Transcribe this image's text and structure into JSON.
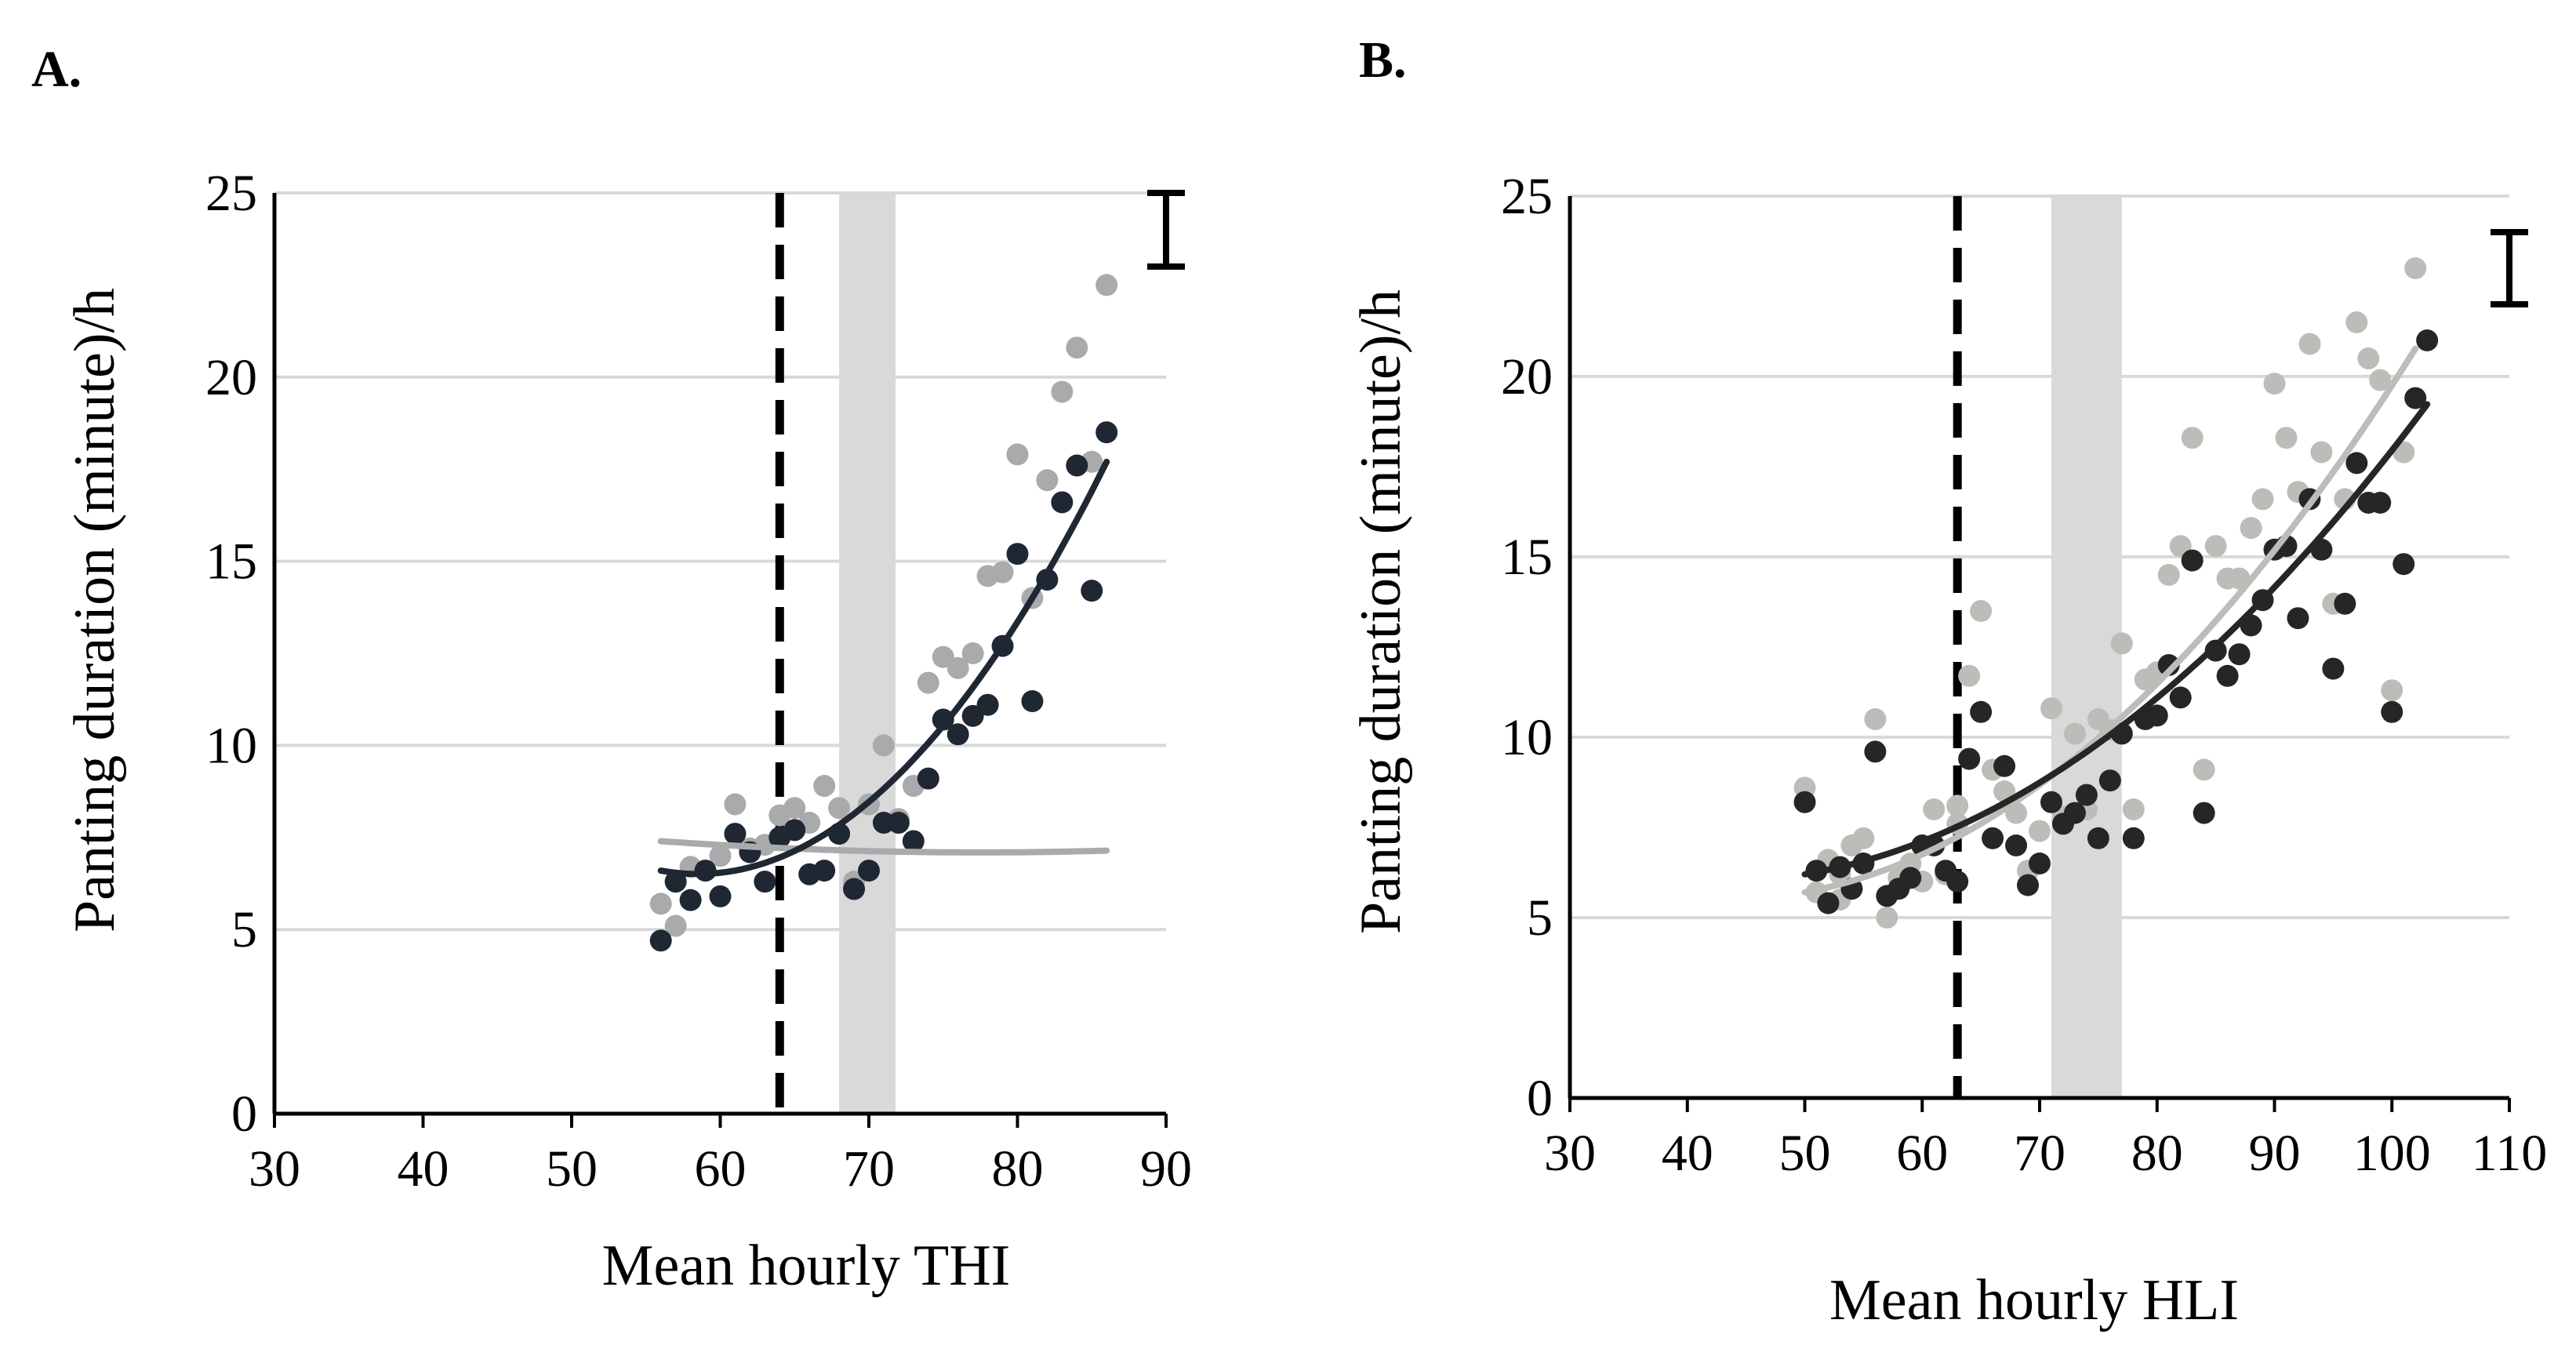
{
  "chart_data": [
    {
      "type": "scatter",
      "panel_label": "A.",
      "xlabel": "Mean hourly THI",
      "ylabel": "Panting duration (minute)/h",
      "xlim": [
        30,
        90
      ],
      "ylim": [
        0,
        25
      ],
      "xticks": [
        "30",
        "40",
        "50",
        "60",
        "70",
        "80",
        "90"
      ],
      "yticks": [
        "0",
        "5",
        "10",
        "15",
        "20",
        "25"
      ],
      "grid": "horizontal",
      "threshold_line_x": 64,
      "shaded_band_x": [
        68,
        71.8
      ],
      "error_bar": {
        "x": 90,
        "y_low": 23,
        "y_high": 25
      },
      "series": [
        {
          "name": "series-light",
          "color": "#a9aaab",
          "trend": [
            7.4,
            -0.0286,
            0.000667
          ],
          "x_ref": 56,
          "points": [
            [
              56,
              5.7
            ],
            [
              57,
              5.1
            ],
            [
              58,
              6.7
            ],
            [
              59,
              6.6
            ],
            [
              60,
              7.0
            ],
            [
              61,
              8.4
            ],
            [
              62,
              7.2
            ],
            [
              63,
              7.3
            ],
            [
              64,
              8.1
            ],
            [
              65,
              8.3
            ],
            [
              66,
              7.9
            ],
            [
              67,
              8.9
            ],
            [
              68,
              8.3
            ],
            [
              69,
              6.3
            ],
            [
              70,
              8.4
            ],
            [
              71,
              10.0
            ],
            [
              72,
              8.0
            ],
            [
              73,
              8.9
            ],
            [
              74,
              11.7
            ],
            [
              75,
              12.4
            ],
            [
              76,
              12.1
            ],
            [
              77,
              12.5
            ],
            [
              78,
              14.6
            ],
            [
              79,
              14.7
            ],
            [
              80,
              17.9
            ],
            [
              81,
              14.0
            ],
            [
              82,
              17.2
            ],
            [
              83,
              19.6
            ],
            [
              84,
              20.8
            ],
            [
              85,
              17.7
            ],
            [
              86,
              22.5
            ]
          ]
        },
        {
          "name": "series-dark",
          "color": "#1f2733",
          "trend": [
            6.6,
            -0.074,
            0.0148
          ],
          "x_ref": 56,
          "points": [
            [
              56,
              4.7
            ],
            [
              57,
              6.3
            ],
            [
              58,
              5.8
            ],
            [
              59,
              6.6
            ],
            [
              60,
              5.9
            ],
            [
              61,
              7.6
            ],
            [
              62,
              7.1
            ],
            [
              63,
              6.3
            ],
            [
              64,
              7.5
            ],
            [
              65,
              7.7
            ],
            [
              66,
              6.5
            ],
            [
              67,
              6.6
            ],
            [
              68,
              7.6
            ],
            [
              69,
              6.1
            ],
            [
              70,
              6.6
            ],
            [
              71,
              7.9
            ],
            [
              72,
              7.9
            ],
            [
              73,
              7.4
            ],
            [
              74,
              9.1
            ],
            [
              75,
              10.7
            ],
            [
              76,
              10.3
            ],
            [
              77,
              10.8
            ],
            [
              78,
              11.1
            ],
            [
              79,
              12.7
            ],
            [
              80,
              15.2
            ],
            [
              81,
              11.2
            ],
            [
              82,
              14.5
            ],
            [
              83,
              16.6
            ],
            [
              84,
              17.6
            ],
            [
              85,
              14.2
            ],
            [
              86,
              18.5
            ]
          ]
        }
      ]
    },
    {
      "type": "scatter",
      "panel_label": "B.",
      "xlabel": "Mean hourly HLI",
      "ylabel": "Panting duration (minute)/h",
      "xlim": [
        30,
        110
      ],
      "ylim": [
        0,
        25
      ],
      "xticks": [
        "30",
        "40",
        "50",
        "60",
        "70",
        "80",
        "90",
        "100",
        "110"
      ],
      "yticks": [
        "0",
        "5",
        "10",
        "15",
        "20",
        "25"
      ],
      "grid": "horizontal",
      "threshold_line_x": 63,
      "shaded_band_x": [
        71,
        77
      ],
      "error_bar": {
        "x": 110,
        "y_low": 22,
        "y_high": 24
      },
      "series": [
        {
          "name": "series-light",
          "color": "#bcbdb8",
          "trend": [
            5.7,
            0.061,
            0.0044
          ],
          "x_ref": 50,
          "points": [
            [
              50,
              8.6
            ],
            [
              51,
              5.7
            ],
            [
              52,
              6.6
            ],
            [
              53,
              6.2
            ],
            [
              53,
              5.5
            ],
            [
              54,
              7.0
            ],
            [
              55,
              7.2
            ],
            [
              56,
              10.5
            ],
            [
              57,
              5.0
            ],
            [
              58,
              6.1
            ],
            [
              59,
              6.5
            ],
            [
              60,
              6.0
            ],
            [
              61,
              8.0
            ],
            [
              62,
              6.2
            ],
            [
              63,
              7.6
            ],
            [
              63,
              8.1
            ],
            [
              64,
              11.7
            ],
            [
              65,
              13.5
            ],
            [
              66,
              9.1
            ],
            [
              67,
              8.5
            ],
            [
              68,
              7.9
            ],
            [
              69,
              6.3
            ],
            [
              70,
              7.4
            ],
            [
              71,
              10.8
            ],
            [
              72,
              7.8
            ],
            [
              73,
              10.1
            ],
            [
              74,
              8.0
            ],
            [
              75,
              10.5
            ],
            [
              76,
              10.2
            ],
            [
              77,
              12.6
            ],
            [
              78,
              8.0
            ],
            [
              79,
              11.6
            ],
            [
              80,
              11.8
            ],
            [
              81,
              14.5
            ],
            [
              82,
              15.3
            ],
            [
              83,
              18.3
            ],
            [
              84,
              9.1
            ],
            [
              85,
              15.3
            ],
            [
              86,
              14.4
            ],
            [
              87,
              14.4
            ],
            [
              88,
              15.8
            ],
            [
              89,
              16.6
            ],
            [
              90,
              19.8
            ],
            [
              91,
              18.3
            ],
            [
              92,
              16.8
            ],
            [
              93,
              20.9
            ],
            [
              94,
              17.9
            ],
            [
              95,
              13.7
            ],
            [
              96,
              16.6
            ],
            [
              97,
              21.5
            ],
            [
              98,
              20.5
            ],
            [
              99,
              19.9
            ],
            [
              100,
              11.3
            ],
            [
              101,
              17.9
            ],
            [
              102,
              23.0
            ]
          ]
        },
        {
          "name": "series-dark",
          "color": "#262626",
          "trend": [
            6.2,
            0.055,
            0.0036
          ],
          "x_ref": 50,
          "points": [
            [
              50,
              8.2
            ],
            [
              51,
              6.3
            ],
            [
              52,
              5.4
            ],
            [
              53,
              6.4
            ],
            [
              54,
              5.8
            ],
            [
              55,
              6.5
            ],
            [
              56,
              9.6
            ],
            [
              57,
              5.6
            ],
            [
              58,
              5.8
            ],
            [
              59,
              6.1
            ],
            [
              60,
              7.0
            ],
            [
              61,
              7.0
            ],
            [
              62,
              6.3
            ],
            [
              63,
              6.0
            ],
            [
              64,
              9.4
            ],
            [
              65,
              10.7
            ],
            [
              66,
              7.2
            ],
            [
              67,
              9.2
            ],
            [
              68,
              7.0
            ],
            [
              69,
              5.9
            ],
            [
              70,
              6.5
            ],
            [
              71,
              8.2
            ],
            [
              72,
              7.6
            ],
            [
              73,
              7.9
            ],
            [
              74,
              8.4
            ],
            [
              75,
              7.2
            ],
            [
              76,
              8.8
            ],
            [
              77,
              10.1
            ],
            [
              78,
              7.2
            ],
            [
              79,
              10.5
            ],
            [
              80,
              10.6
            ],
            [
              81,
              12.0
            ],
            [
              82,
              11.1
            ],
            [
              83,
              14.9
            ],
            [
              84,
              7.9
            ],
            [
              85,
              12.4
            ],
            [
              86,
              11.7
            ],
            [
              87,
              12.3
            ],
            [
              88,
              13.1
            ],
            [
              89,
              13.8
            ],
            [
              90,
              15.2
            ],
            [
              91,
              15.3
            ],
            [
              92,
              13.3
            ],
            [
              93,
              16.6
            ],
            [
              94,
              15.2
            ],
            [
              95,
              11.9
            ],
            [
              96,
              13.7
            ],
            [
              97,
              17.6
            ],
            [
              98,
              16.5
            ],
            [
              99,
              16.5
            ],
            [
              100,
              10.7
            ],
            [
              101,
              14.8
            ],
            [
              102,
              19.4
            ],
            [
              103,
              21.0
            ]
          ]
        }
      ]
    }
  ]
}
